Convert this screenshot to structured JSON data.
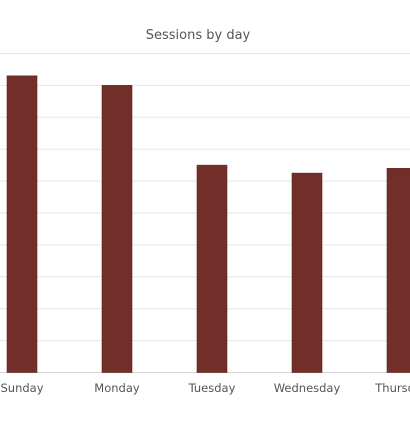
{
  "chart_data": {
    "type": "bar",
    "title": "Sessions by day",
    "xlabel": "",
    "ylabel": "",
    "categories": [
      "Sunday",
      "Monday",
      "Tuesday",
      "Wednesday",
      "Thursday"
    ],
    "values": [
      93,
      90,
      65,
      62.5,
      64
    ],
    "ylim": [
      0,
      100
    ],
    "grid": true,
    "legend": "none",
    "bar_color": "#722f29",
    "gridline_color": "#e6e6e6"
  }
}
